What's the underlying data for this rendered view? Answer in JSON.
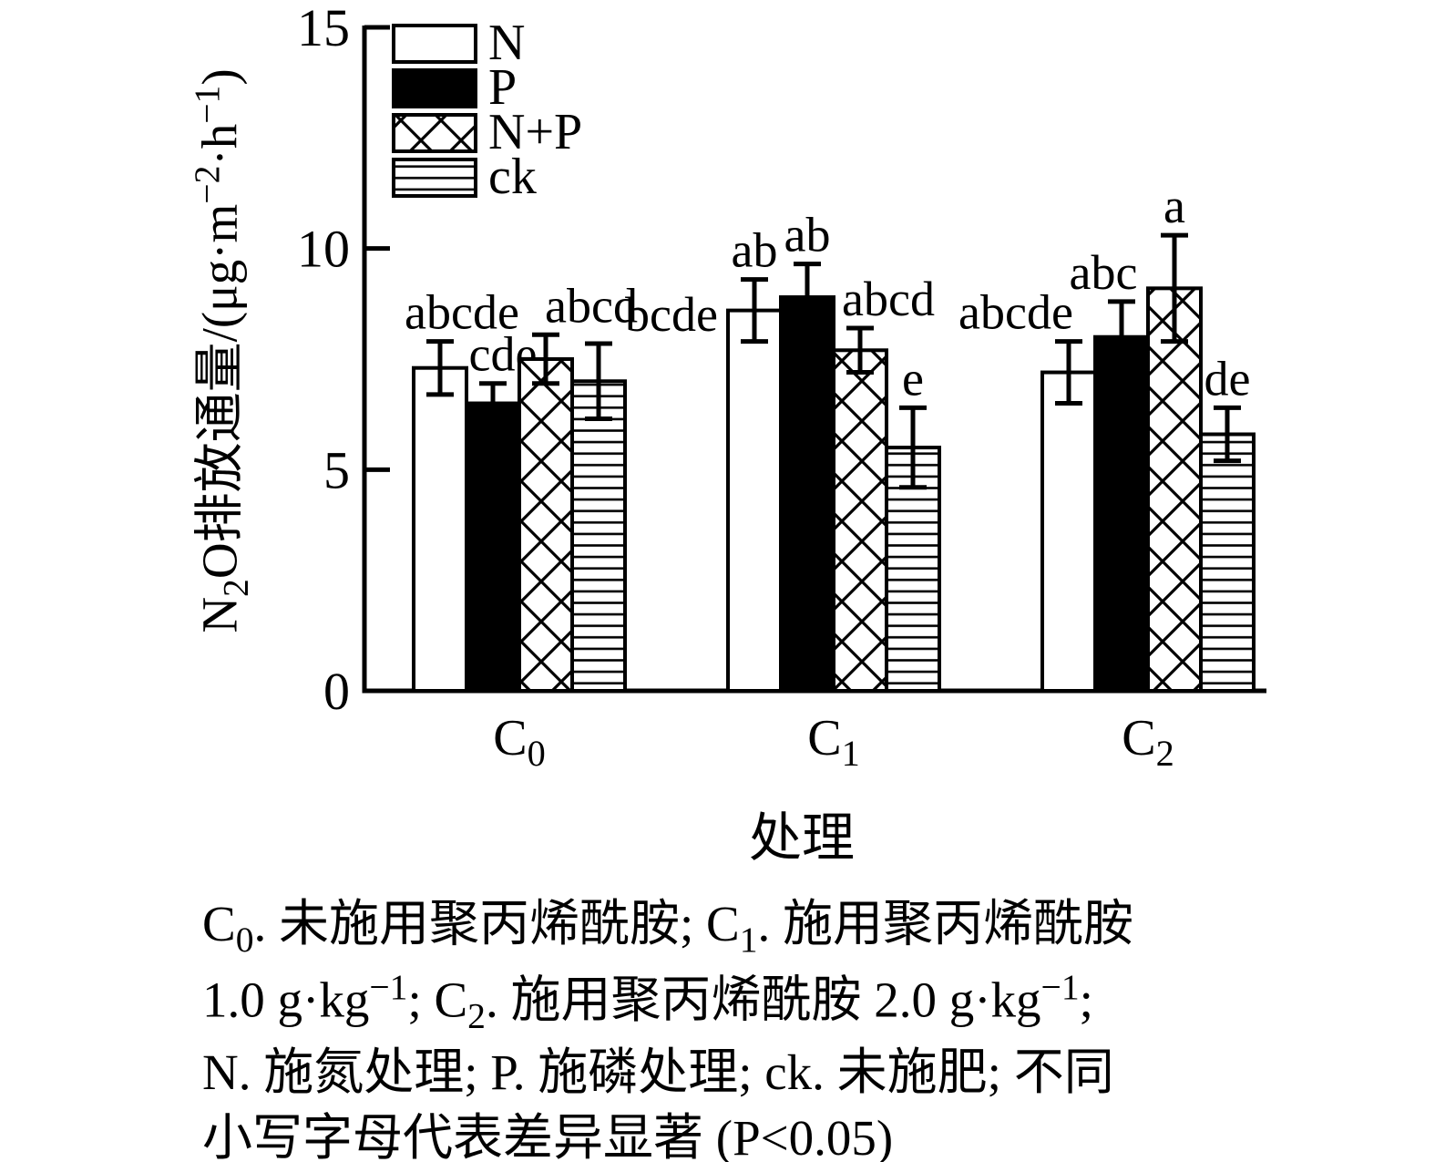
{
  "chart_data": {
    "type": "bar",
    "title": "",
    "xlabel": "处理",
    "ylabel": "N₂O排放通量/(μg·m⁻²·h⁻¹)",
    "ylim": [
      0,
      15
    ],
    "yticks": [
      0,
      5,
      10,
      15
    ],
    "grid": false,
    "legend_position": "top-left-inside",
    "categories": [
      "C₀",
      "C₁",
      "C₂"
    ],
    "series": [
      {
        "name": "N",
        "pattern": "white",
        "values": [
          7.3,
          8.6,
          7.2
        ],
        "errors": [
          0.6,
          0.7,
          0.7
        ],
        "sig_letters": [
          "abcde",
          "ab",
          "abcde"
        ]
      },
      {
        "name": "P",
        "pattern": "black",
        "values": [
          6.5,
          8.9,
          8.0
        ],
        "errors": [
          0.45,
          0.75,
          0.8
        ],
        "sig_letters": [
          "cde",
          "ab",
          "abc"
        ]
      },
      {
        "name": "N+P",
        "pattern": "crosshatch",
        "values": [
          7.5,
          7.7,
          9.1
        ],
        "errors": [
          0.55,
          0.5,
          1.2
        ],
        "sig_letters": [
          "abcd",
          "abcd",
          "a"
        ]
      },
      {
        "name": "ck",
        "pattern": "hlines",
        "values": [
          7.0,
          5.5,
          5.8
        ],
        "errors": [
          0.85,
          0.9,
          0.6
        ],
        "sig_letters": [
          "bcde",
          "e",
          "de"
        ]
      }
    ],
    "colors": {
      "ink": "#000000",
      "background": "#ffffff"
    }
  },
  "caption": {
    "lines": [
      "C₀. 未施用聚丙烯酰胺; C₁. 施用聚丙烯酰胺",
      "1.0 g·kg⁻¹; C₂. 施用聚丙烯酰胺 2.0 g·kg⁻¹;",
      "N. 施氮处理; P. 施磷处理; ck. 未施肥; 不同",
      "小写字母代表差异显著 (P<0.05)"
    ]
  }
}
